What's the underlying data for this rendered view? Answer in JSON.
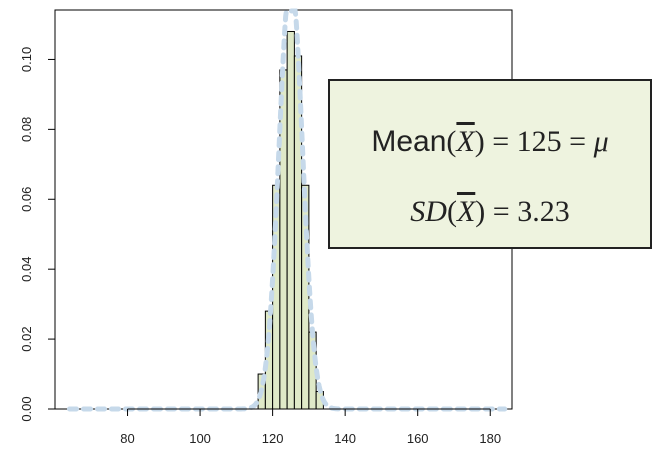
{
  "chart_data": {
    "type": "bar",
    "bin_width": 2,
    "bins": [
      {
        "x0": 116,
        "value": 0.01
      },
      {
        "x0": 118,
        "value": 0.028
      },
      {
        "x0": 120,
        "value": 0.064
      },
      {
        "x0": 122,
        "value": 0.097
      },
      {
        "x0": 124,
        "value": 0.108
      },
      {
        "x0": 126,
        "value": 0.101
      },
      {
        "x0": 128,
        "value": 0.064
      },
      {
        "x0": 130,
        "value": 0.022
      },
      {
        "x0": 132,
        "value": 0.005
      }
    ],
    "overlay_curve": {
      "type": "normal-density",
      "mean": 125,
      "sd": 3.23,
      "style": "dashed",
      "color": "#c6d9ea"
    },
    "xlim": [
      60,
      186
    ],
    "ylim": [
      0,
      0.113
    ],
    "x_ticks": [
      "80",
      "100",
      "120",
      "140",
      "160",
      "180"
    ],
    "y_ticks": [
      "0.00",
      "0.02",
      "0.04",
      "0.06",
      "0.08",
      "0.10"
    ],
    "bar_fill": "#dfe9c8",
    "bar_stroke": "#000000",
    "title": "",
    "xlabel": "",
    "ylabel": ""
  },
  "annotation": {
    "background": "#eef3df",
    "line1": {
      "func": "Mean",
      "var": "X",
      "eq1": "= 125 =",
      "mu": "μ"
    },
    "line2": {
      "func": "SD",
      "var": "X",
      "eq": "= 3.23"
    }
  }
}
